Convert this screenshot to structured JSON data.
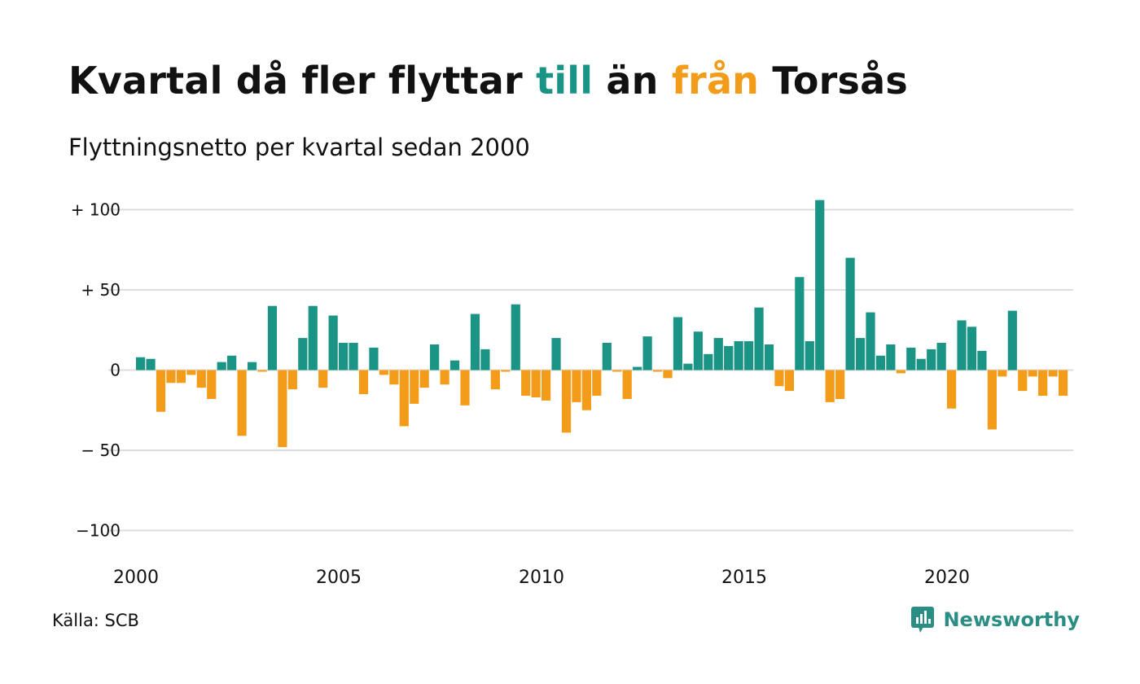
{
  "title": {
    "part1": "Kvartal då fler flyttar ",
    "till": "till",
    "part2": " än ",
    "fran": "från",
    "part3": " Torsås"
  },
  "subtitle": "Flyttningsnetto per kvartal sedan 2000",
  "source": "Källa: SCB",
  "brand": {
    "name": "Newsworthy",
    "icon": "newsworthy-logo-icon",
    "color": "#2a8e84"
  },
  "colors": {
    "positive": "#1a9484",
    "negative": "#f39c1a",
    "grid": "#dddddd"
  },
  "chart_data": {
    "type": "bar",
    "title": "Kvartal då fler flyttar till än från Torsås",
    "subtitle": "Flyttningsnetto per kvartal sedan 2000",
    "start_year": 2000,
    "quarters_per_year": 4,
    "ylim": [
      -110,
      110
    ],
    "yticks": [
      {
        "value": 100,
        "label": "+ 100"
      },
      {
        "value": 50,
        "label": "+  50"
      },
      {
        "value": 0,
        "label": "0"
      },
      {
        "value": -50,
        "label": "− 50"
      },
      {
        "value": -100,
        "label": "−100"
      }
    ],
    "xticks": [
      "2000",
      "2005",
      "2010",
      "2015",
      "2020"
    ],
    "grid": true,
    "values": [
      8,
      7,
      -26,
      -8,
      -8,
      -3,
      -11,
      -18,
      5,
      9,
      -41,
      5,
      -1,
      40,
      -48,
      -12,
      20,
      40,
      -11,
      34,
      17,
      17,
      -15,
      14,
      -3,
      -9,
      -35,
      -21,
      -11,
      16,
      -9,
      6,
      -22,
      35,
      13,
      -12,
      -1,
      41,
      -16,
      -17,
      -19,
      20,
      -39,
      -20,
      -25,
      -16,
      17,
      -1,
      -18,
      2,
      21,
      -1,
      -5,
      33,
      4,
      24,
      10,
      20,
      15,
      18,
      18,
      39,
      16,
      -10,
      -13,
      58,
      18,
      106,
      -20,
      -18,
      70,
      20,
      36,
      9,
      16,
      -2,
      14,
      7,
      13,
      17,
      -24,
      31,
      27,
      12,
      -37,
      -4,
      37,
      -13,
      -4,
      -16,
      -4,
      -16
    ]
  }
}
